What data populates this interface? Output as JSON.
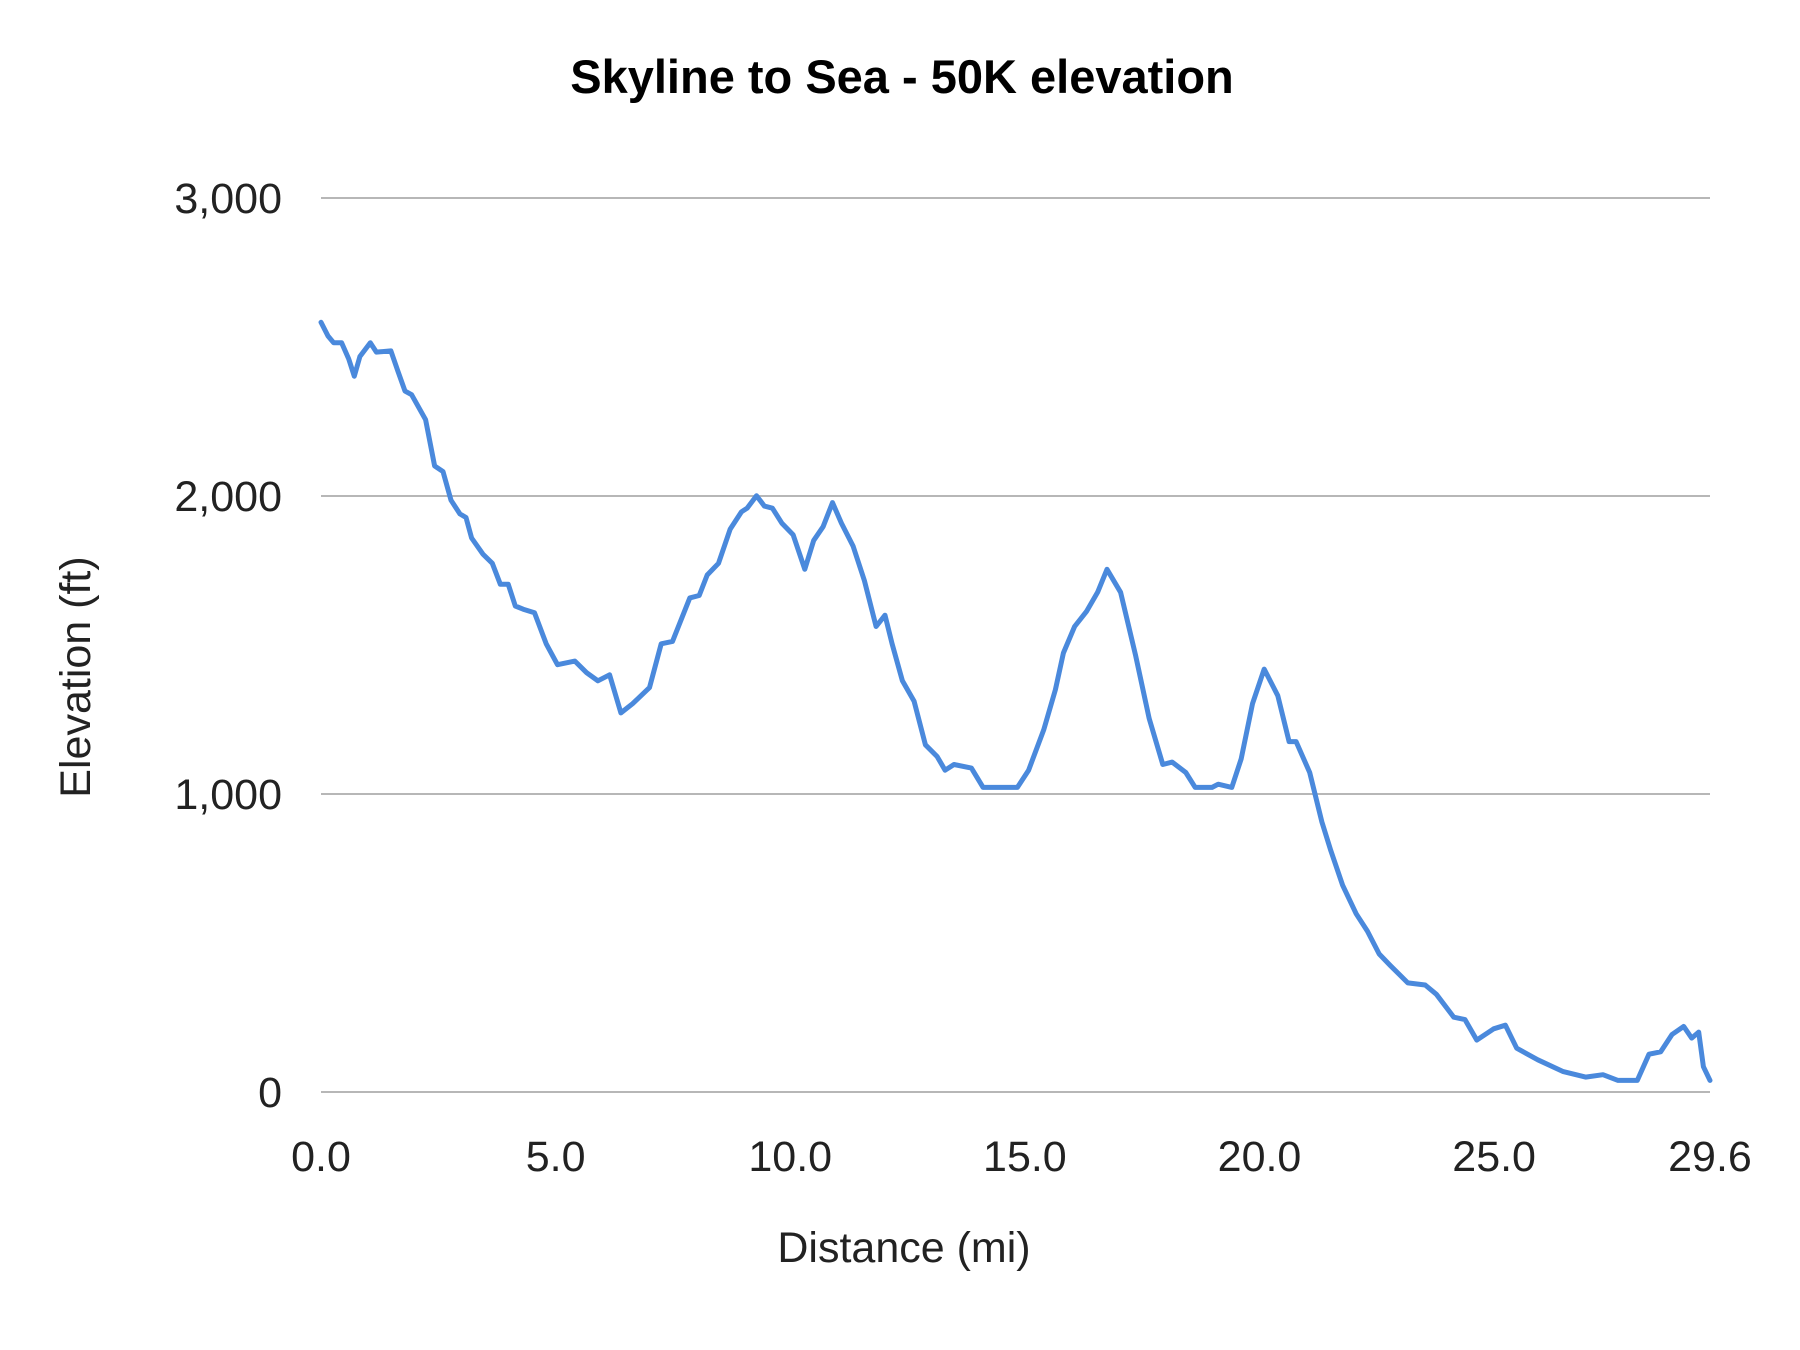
{
  "chart_data": {
    "type": "line",
    "title": "Skyline to Sea - 50K elevation",
    "xlabel": "Distance (mi)",
    "ylabel": "Elevation (ft)",
    "xlim": [
      0,
      29.6
    ],
    "ylim": [
      0,
      3000
    ],
    "x_ticks": [
      "0.0",
      "5.0",
      "10.0",
      "15.0",
      "20.0",
      "25.0",
      "29.6"
    ],
    "x_tick_values": [
      0,
      5,
      10,
      15,
      20,
      25,
      29.6
    ],
    "y_ticks": [
      "0",
      "1,000",
      "2,000",
      "3,000"
    ],
    "y_tick_values": [
      0,
      1000,
      2000,
      3000
    ],
    "grid": "horizontal",
    "legend": "none",
    "line_color": "#4a89dc",
    "grid_color": "#b7b7b7",
    "series": [
      {
        "x": [
          0.0,
          0.15,
          0.27,
          0.44,
          0.59,
          0.71,
          0.83,
          1.05,
          1.18,
          1.49,
          1.64,
          1.79,
          1.93,
          2.23,
          2.42,
          2.6,
          2.77,
          2.96,
          3.09,
          3.21,
          3.45,
          3.65,
          3.82,
          3.99,
          4.14,
          4.31,
          4.55,
          4.8,
          5.04,
          5.41,
          5.66,
          5.9,
          6.15,
          6.39,
          6.64,
          7.0,
          7.25,
          7.49,
          7.86,
          8.06,
          8.23,
          8.47,
          8.72,
          8.96,
          9.08,
          9.28,
          9.45,
          9.62,
          9.82,
          10.06,
          10.31,
          10.5,
          10.7,
          10.9,
          11.09,
          11.34,
          11.58,
          11.83,
          12.02,
          12.17,
          12.39,
          12.64,
          12.88,
          13.13,
          13.3,
          13.49,
          13.86,
          14.11,
          14.6,
          14.84,
          15.08,
          15.4,
          15.65,
          15.82,
          16.06,
          16.31,
          16.55,
          16.75,
          17.04,
          17.36,
          17.65,
          17.94,
          18.14,
          18.43,
          18.63,
          18.99,
          19.12,
          19.41,
          19.61,
          19.85,
          20.1,
          20.39,
          20.63,
          20.78,
          21.07,
          21.33,
          21.52,
          21.77,
          22.06,
          22.3,
          22.55,
          22.79,
          23.16,
          23.53,
          23.77,
          24.14,
          24.38,
          24.63,
          24.99,
          25.24,
          25.48,
          25.93,
          26.46,
          26.95,
          27.32,
          27.64,
          28.05,
          28.3,
          28.55,
          28.79,
          29.04,
          29.21,
          29.36,
          29.46,
          29.6
        ],
        "y": [
          2583,
          2537,
          2514,
          2514,
          2460,
          2402,
          2468,
          2514,
          2483,
          2487,
          2418,
          2352,
          2340,
          2256,
          2101,
          2082,
          1986,
          1940,
          1928,
          1859,
          1805,
          1774,
          1704,
          1704,
          1631,
          1620,
          1608,
          1504,
          1434,
          1446,
          1407,
          1380,
          1400,
          1272,
          1303,
          1357,
          1504,
          1512,
          1658,
          1666,
          1735,
          1774,
          1889,
          1947,
          1959,
          2001,
          1966,
          1959,
          1909,
          1870,
          1754,
          1851,
          1897,
          1978,
          1909,
          1832,
          1716,
          1562,
          1600,
          1504,
          1380,
          1311,
          1165,
          1126,
          1080,
          1099,
          1087,
          1022,
          1022,
          1022,
          1080,
          1215,
          1350,
          1473,
          1562,
          1612,
          1677,
          1754,
          1677,
          1465,
          1253,
          1099,
          1107,
          1072,
          1022,
          1022,
          1033,
          1022,
          1118,
          1303,
          1419,
          1330,
          1176,
          1176,
          1072,
          906,
          810,
          694,
          598,
          540,
          463,
          424,
          366,
          359,
          328,
          251,
          243,
          174,
          212,
          224,
          147,
          108,
          69,
          50,
          58,
          39,
          39,
          127,
          135,
          193,
          220,
          181,
          201,
          85,
          39
        ]
      }
    ]
  }
}
